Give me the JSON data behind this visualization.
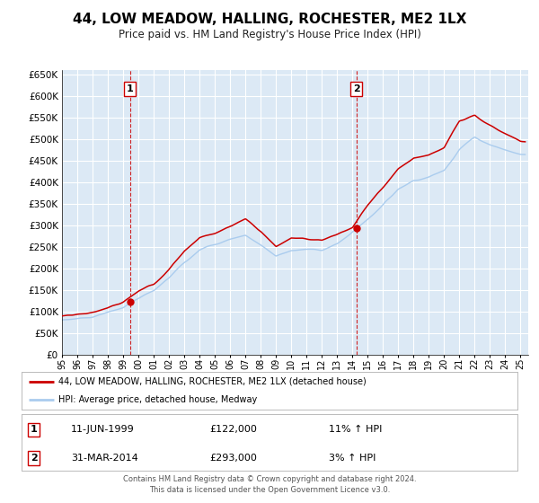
{
  "title": "44, LOW MEADOW, HALLING, ROCHESTER, ME2 1LX",
  "subtitle": "Price paid vs. HM Land Registry's House Price Index (HPI)",
  "title_fontsize": 11,
  "subtitle_fontsize": 8.5,
  "background_color": "#ffffff",
  "plot_bg_color": "#dce9f5",
  "grid_color": "#ffffff",
  "legend_line1": "44, LOW MEADOW, HALLING, ROCHESTER, ME2 1LX (detached house)",
  "legend_line2": "HPI: Average price, detached house, Medway",
  "red_line_color": "#cc0000",
  "blue_line_color": "#aaccee",
  "marker_color": "#cc0000",
  "annotation1": {
    "num": "1",
    "date": "11-JUN-1999",
    "price": "£122,000",
    "pct": "11% ↑ HPI"
  },
  "annotation2": {
    "num": "2",
    "date": "31-MAR-2014",
    "price": "£293,000",
    "pct": "3% ↑ HPI"
  },
  "vline1_x": 1999.45,
  "vline2_x": 2014.25,
  "marker1_x": 1999.45,
  "marker1_y": 122000,
  "marker2_x": 2014.25,
  "marker2_y": 293000,
  "ylim": [
    0,
    660000
  ],
  "xlim_start": 1995.0,
  "xlim_end": 2025.5,
  "footer": "Contains HM Land Registry data © Crown copyright and database right 2024.\nThis data is licensed under the Open Government Licence v3.0.",
  "hpi_anchors_x": [
    1995,
    1996,
    1997,
    1998,
    1999,
    2000,
    2001,
    2002,
    2003,
    2004,
    2005,
    2006,
    2007,
    2008,
    2009,
    2010,
    2011,
    2012,
    2013,
    2014,
    2015,
    2016,
    2017,
    2018,
    2019,
    2020,
    2021,
    2022,
    2023,
    2024,
    2025
  ],
  "hpi_anchors_y": [
    80000,
    84000,
    88000,
    98000,
    110000,
    130000,
    148000,
    178000,
    215000,
    245000,
    255000,
    268000,
    278000,
    255000,
    228000,
    242000,
    244000,
    244000,
    256000,
    285000,
    315000,
    348000,
    385000,
    405000,
    412000,
    428000,
    478000,
    505000,
    488000,
    475000,
    465000
  ],
  "prop_anchors_x": [
    1995,
    1996,
    1997,
    1998,
    1999,
    2000,
    2001,
    2002,
    2003,
    2004,
    2005,
    2006,
    2007,
    2008,
    2009,
    2010,
    2011,
    2012,
    2013,
    2014,
    2015,
    2016,
    2017,
    2018,
    2019,
    2020,
    2021,
    2022,
    2023,
    2024,
    2025
  ],
  "prop_anchors_y": [
    88000,
    92000,
    98000,
    108000,
    122000,
    148000,
    165000,
    198000,
    242000,
    272000,
    282000,
    298000,
    315000,
    288000,
    252000,
    272000,
    268000,
    265000,
    278000,
    293000,
    348000,
    388000,
    432000,
    458000,
    462000,
    480000,
    543000,
    558000,
    532000,
    512000,
    498000
  ]
}
